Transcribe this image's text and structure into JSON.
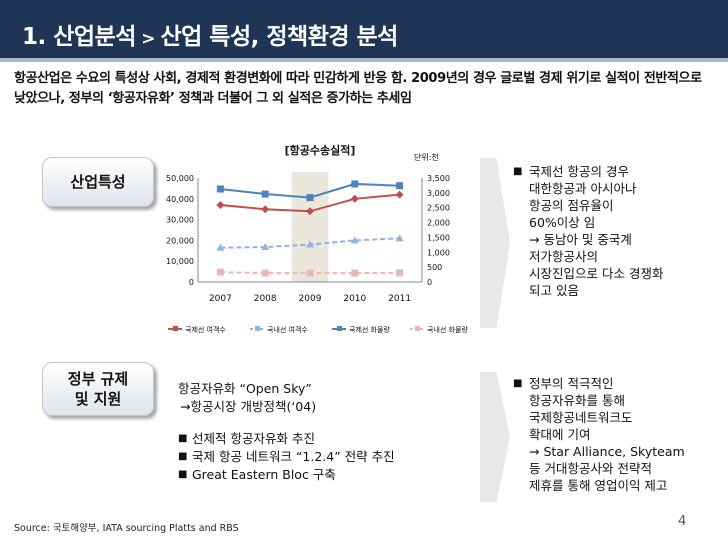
{
  "header": {
    "title_part1": "1. 산업분석",
    "title_sep": " > ",
    "title_part2": "산업 특성, 정책환경 분석"
  },
  "intro": {
    "text": "항공산업은 수요의 특성상 사회, 경제적 환경변화에 따라 민감하게 반응 함. 2009년의 경우 글로벌 경제 위기로 실적이 전반적으로 낮았으나, 정부의 ‘항공자유화’ 정책과 더불어 그 외 실적은 증가하는 추세임"
  },
  "sections": {
    "industry_label": "산업특성",
    "gov_label_line1": "정부 규제",
    "gov_label_line2": "및 지원"
  },
  "right_notes": {
    "industry": {
      "bullet": "■",
      "lines": [
        "국제선 항공의 경우",
        "대한항공과 아시아나",
        "항공의 점유율이",
        "60%이상 임",
        "→ 동남아 및 중국계",
        "저가항공사의",
        "시장진입으로 다소 경쟁화",
        "되고 있음"
      ]
    },
    "government": {
      "bullet": "■",
      "lines": [
        "정부의 적극적인",
        "항공자유화를 통해",
        "국제항공네트워크도",
        "확대에 기여",
        "→ Star Alliance, Skyteam",
        "등 거대항공사와 전략적",
        "제휴를 통해 영업이익 제고"
      ]
    }
  },
  "gov_text": {
    "line1": "항공자유화 “Open Sky”",
    "line2": "→항공시장 개방정책(‘04)",
    "bullets": [
      "선제적 항공자유화 추진",
      "국제 항공 네트워크 “1.2.4” 전략 추진",
      "Great Eastern Bloc 구축"
    ]
  },
  "footer": {
    "source": "Source: 국토해양부, IATA sourcing Platts and RBS",
    "page": "4"
  },
  "chart_data": {
    "type": "line",
    "title": "[항공수송실적]",
    "unit_label": "단위:천",
    "categories": [
      "2007",
      "2008",
      "2009",
      "2010",
      "2011"
    ],
    "highlight_category": "2009",
    "y_left": {
      "ticks": [
        "50,000",
        "40,000",
        "30,000",
        "20,000",
        "10,000",
        "0"
      ],
      "range": [
        0,
        50000
      ]
    },
    "y_right": {
      "ticks": [
        "3,500",
        "3,000",
        "2,500",
        "2,000",
        "1,500",
        "1,000",
        "500",
        "0"
      ],
      "range": [
        0,
        3500
      ]
    },
    "series": [
      {
        "name": "국제선 여객수",
        "axis": "left",
        "color": "#c0504d",
        "dashed": false,
        "marker": "diamond",
        "values": [
          37000,
          35000,
          34000,
          40000,
          42000
        ]
      },
      {
        "name": "국내선 여객수",
        "axis": "left",
        "color": "#8eb4e3",
        "dashed": true,
        "marker": "triangle",
        "values": [
          16500,
          16800,
          18000,
          20000,
          21000
        ]
      },
      {
        "name": "국제선 화물량",
        "axis": "right",
        "color": "#4f81bd",
        "dashed": false,
        "marker": "square",
        "values": [
          3130,
          2960,
          2840,
          3300,
          3240
        ]
      },
      {
        "name": "국내선 화물량",
        "axis": "right",
        "color": "#e6b9b8",
        "dashed": true,
        "marker": "square",
        "values": [
          330,
          300,
          300,
          300,
          310
        ]
      }
    ]
  }
}
